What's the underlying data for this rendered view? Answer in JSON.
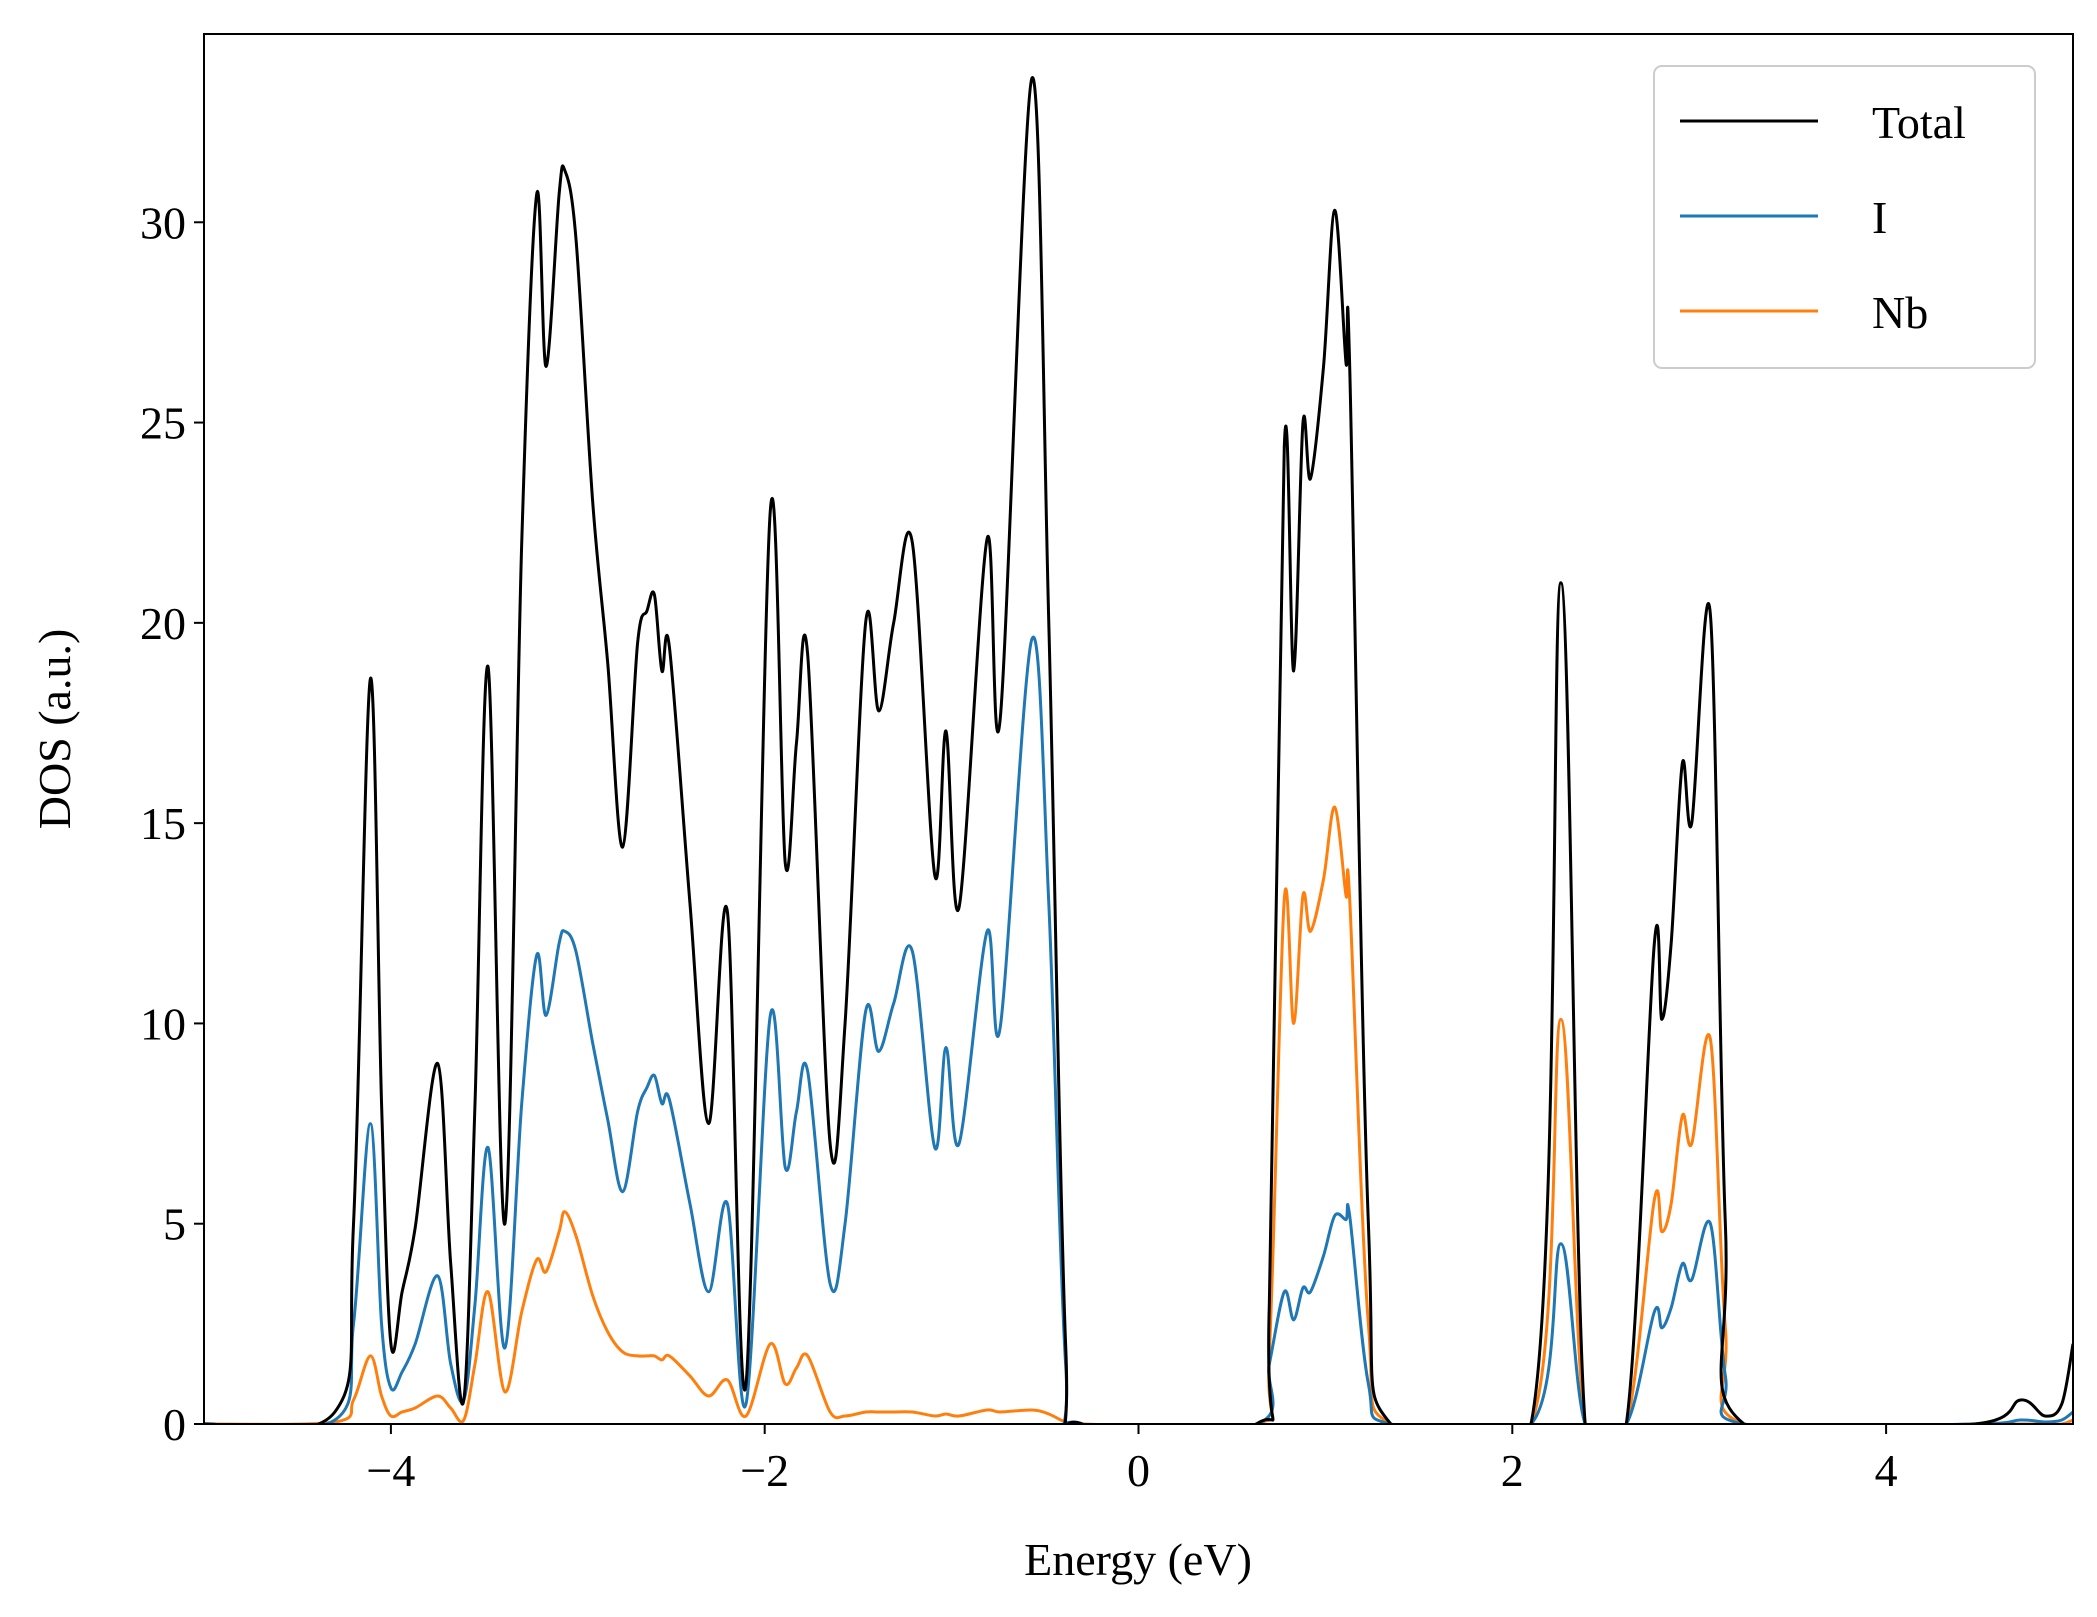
{
  "chart_data": {
    "type": "line",
    "xlabel": "Energy (eV)",
    "ylabel": "DOS (a.u.)",
    "x": [
      -5,
      -4.3,
      -4.2,
      -4.11,
      -4.05,
      -4.0,
      -3.94,
      -3.87,
      -3.75,
      -3.68,
      -3.61,
      -3.55,
      -3.48,
      -3.39,
      -3.3,
      -3.22,
      -3.17,
      -3.1,
      -3.07,
      -3.01,
      -2.92,
      -2.84,
      -2.76,
      -2.68,
      -2.63,
      -2.59,
      -2.55,
      -2.51,
      -2.4,
      -2.3,
      -2.2,
      -2.1,
      -1.97,
      -1.89,
      -1.83,
      -1.77,
      -1.65,
      -1.57,
      -1.46,
      -1.39,
      -1.31,
      -1.21,
      -1.09,
      -1.03,
      -0.96,
      -0.81,
      -0.74,
      -0.57,
      -0.48,
      -0.39,
      -0.3,
      0.63,
      0.7,
      0.78,
      0.83,
      0.88,
      0.92,
      0.99,
      1.05,
      1.11,
      1.13,
      1.23,
      1.35,
      2.1,
      2.26,
      2.39,
      2.61,
      2.76,
      2.8,
      2.85,
      2.91,
      2.96,
      3.06,
      3.14,
      3.24,
      4.47,
      4.72,
      4.85,
      4.94,
      5.0
    ],
    "series": [
      {
        "name": "Total",
        "color": "#000000",
        "values": [
          0,
          0.3,
          5,
          18.6,
          8,
          2.0,
          3.3,
          4.9,
          9.0,
          4,
          0.6,
          8,
          18.9,
          5.0,
          22,
          30.7,
          26.4,
          30.7,
          31.3,
          29.6,
          23,
          19,
          14.4,
          19.5,
          20.3,
          20.7,
          18.8,
          19.4,
          13,
          7.5,
          12.8,
          1.0,
          22.8,
          14,
          17,
          19.2,
          7.0,
          10,
          20,
          17.8,
          20,
          22,
          13.7,
          17.3,
          12.9,
          22.1,
          17.6,
          33.6,
          20,
          2,
          0,
          0,
          3,
          24.4,
          18.8,
          25,
          23.6,
          26.4,
          30.3,
          26.5,
          26.4,
          5,
          0,
          0,
          21,
          0,
          0,
          12,
          10.1,
          12,
          16.5,
          15,
          20.2,
          5,
          0,
          0,
          0.6,
          0.2,
          0.5,
          2.0
        ]
      },
      {
        "name": "I",
        "color": "#1f77b4",
        "values": [
          0,
          0.1,
          2.5,
          7.5,
          2.5,
          0.9,
          1.3,
          2.0,
          3.7,
          1.5,
          0.6,
          3,
          6.9,
          1.9,
          8,
          11.7,
          10.2,
          12.0,
          12.3,
          11.8,
          9.5,
          7.6,
          5.8,
          7.8,
          8.4,
          8.7,
          8.0,
          8.1,
          5.5,
          3.3,
          5.5,
          0.5,
          10.2,
          6.4,
          7.8,
          8.8,
          3.5,
          5,
          10.3,
          9.3,
          10.5,
          11.8,
          6.9,
          9.4,
          7.0,
          12.3,
          9.9,
          19.6,
          13,
          1.5,
          0,
          0,
          1.5,
          3.3,
          2.6,
          3.4,
          3.3,
          4.2,
          5.2,
          5.1,
          5.2,
          1.0,
          0,
          0,
          4.5,
          0,
          0,
          2.8,
          2.4,
          2.9,
          4.0,
          3.6,
          5.0,
          1.2,
          0,
          0,
          0.1,
          0.05,
          0.1,
          0.3
        ]
      },
      {
        "name": "Nb",
        "color": "#ff7f0e",
        "values": [
          0,
          0.05,
          0.6,
          1.7,
          0.7,
          0.2,
          0.3,
          0.4,
          0.7,
          0.4,
          0.1,
          1.5,
          3.3,
          0.8,
          2.8,
          4.1,
          3.8,
          4.8,
          5.3,
          4.7,
          3.2,
          2.3,
          1.8,
          1.7,
          1.7,
          1.7,
          1.6,
          1.7,
          1.2,
          0.7,
          1.1,
          0.2,
          2.0,
          1.0,
          1.4,
          1.7,
          0.3,
          0.2,
          0.3,
          0.3,
          0.3,
          0.3,
          0.2,
          0.25,
          0.2,
          0.35,
          0.3,
          0.35,
          0.25,
          0.05,
          0,
          0,
          1.8,
          13.1,
          10.0,
          13.2,
          12.3,
          13.6,
          15.4,
          13.2,
          13.1,
          2.5,
          0,
          0,
          10.1,
          0,
          0,
          5.6,
          4.8,
          5.5,
          7.7,
          7.0,
          9.6,
          2.4,
          0,
          0,
          0,
          0,
          0,
          0.1
        ]
      }
    ],
    "xlim": [
      -5,
      5
    ],
    "xticks": [
      {
        "value": -4,
        "label": "−4"
      },
      {
        "value": -2,
        "label": "−2"
      },
      0,
      2,
      4
    ],
    "ylim": [
      0,
      34.7
    ],
    "yticks": [
      0,
      5,
      10,
      15,
      20,
      25,
      30
    ],
    "legend": "upper right"
  }
}
